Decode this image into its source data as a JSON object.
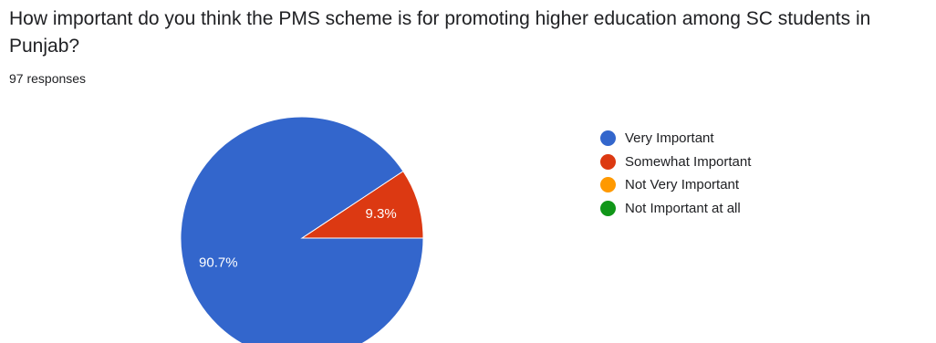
{
  "question": {
    "title": "How important do you think the PMS scheme is for promoting higher education among SC students in Punjab?",
    "responses": "97 responses"
  },
  "chart_data": {
    "type": "pie",
    "total_responses": 97,
    "slices": [
      {
        "label": "Very Important",
        "value": 90.7,
        "display": "90.7%",
        "color": "#3366cc"
      },
      {
        "label": "Somewhat Important",
        "value": 9.3,
        "display": "9.3%",
        "color": "#dc3912"
      },
      {
        "label": "Not Very Important",
        "value": 0,
        "display": "",
        "color": "#ff9900"
      },
      {
        "label": "Not Important at all",
        "value": 0,
        "display": "",
        "color": "#109618"
      }
    ],
    "legend_position": "right"
  }
}
